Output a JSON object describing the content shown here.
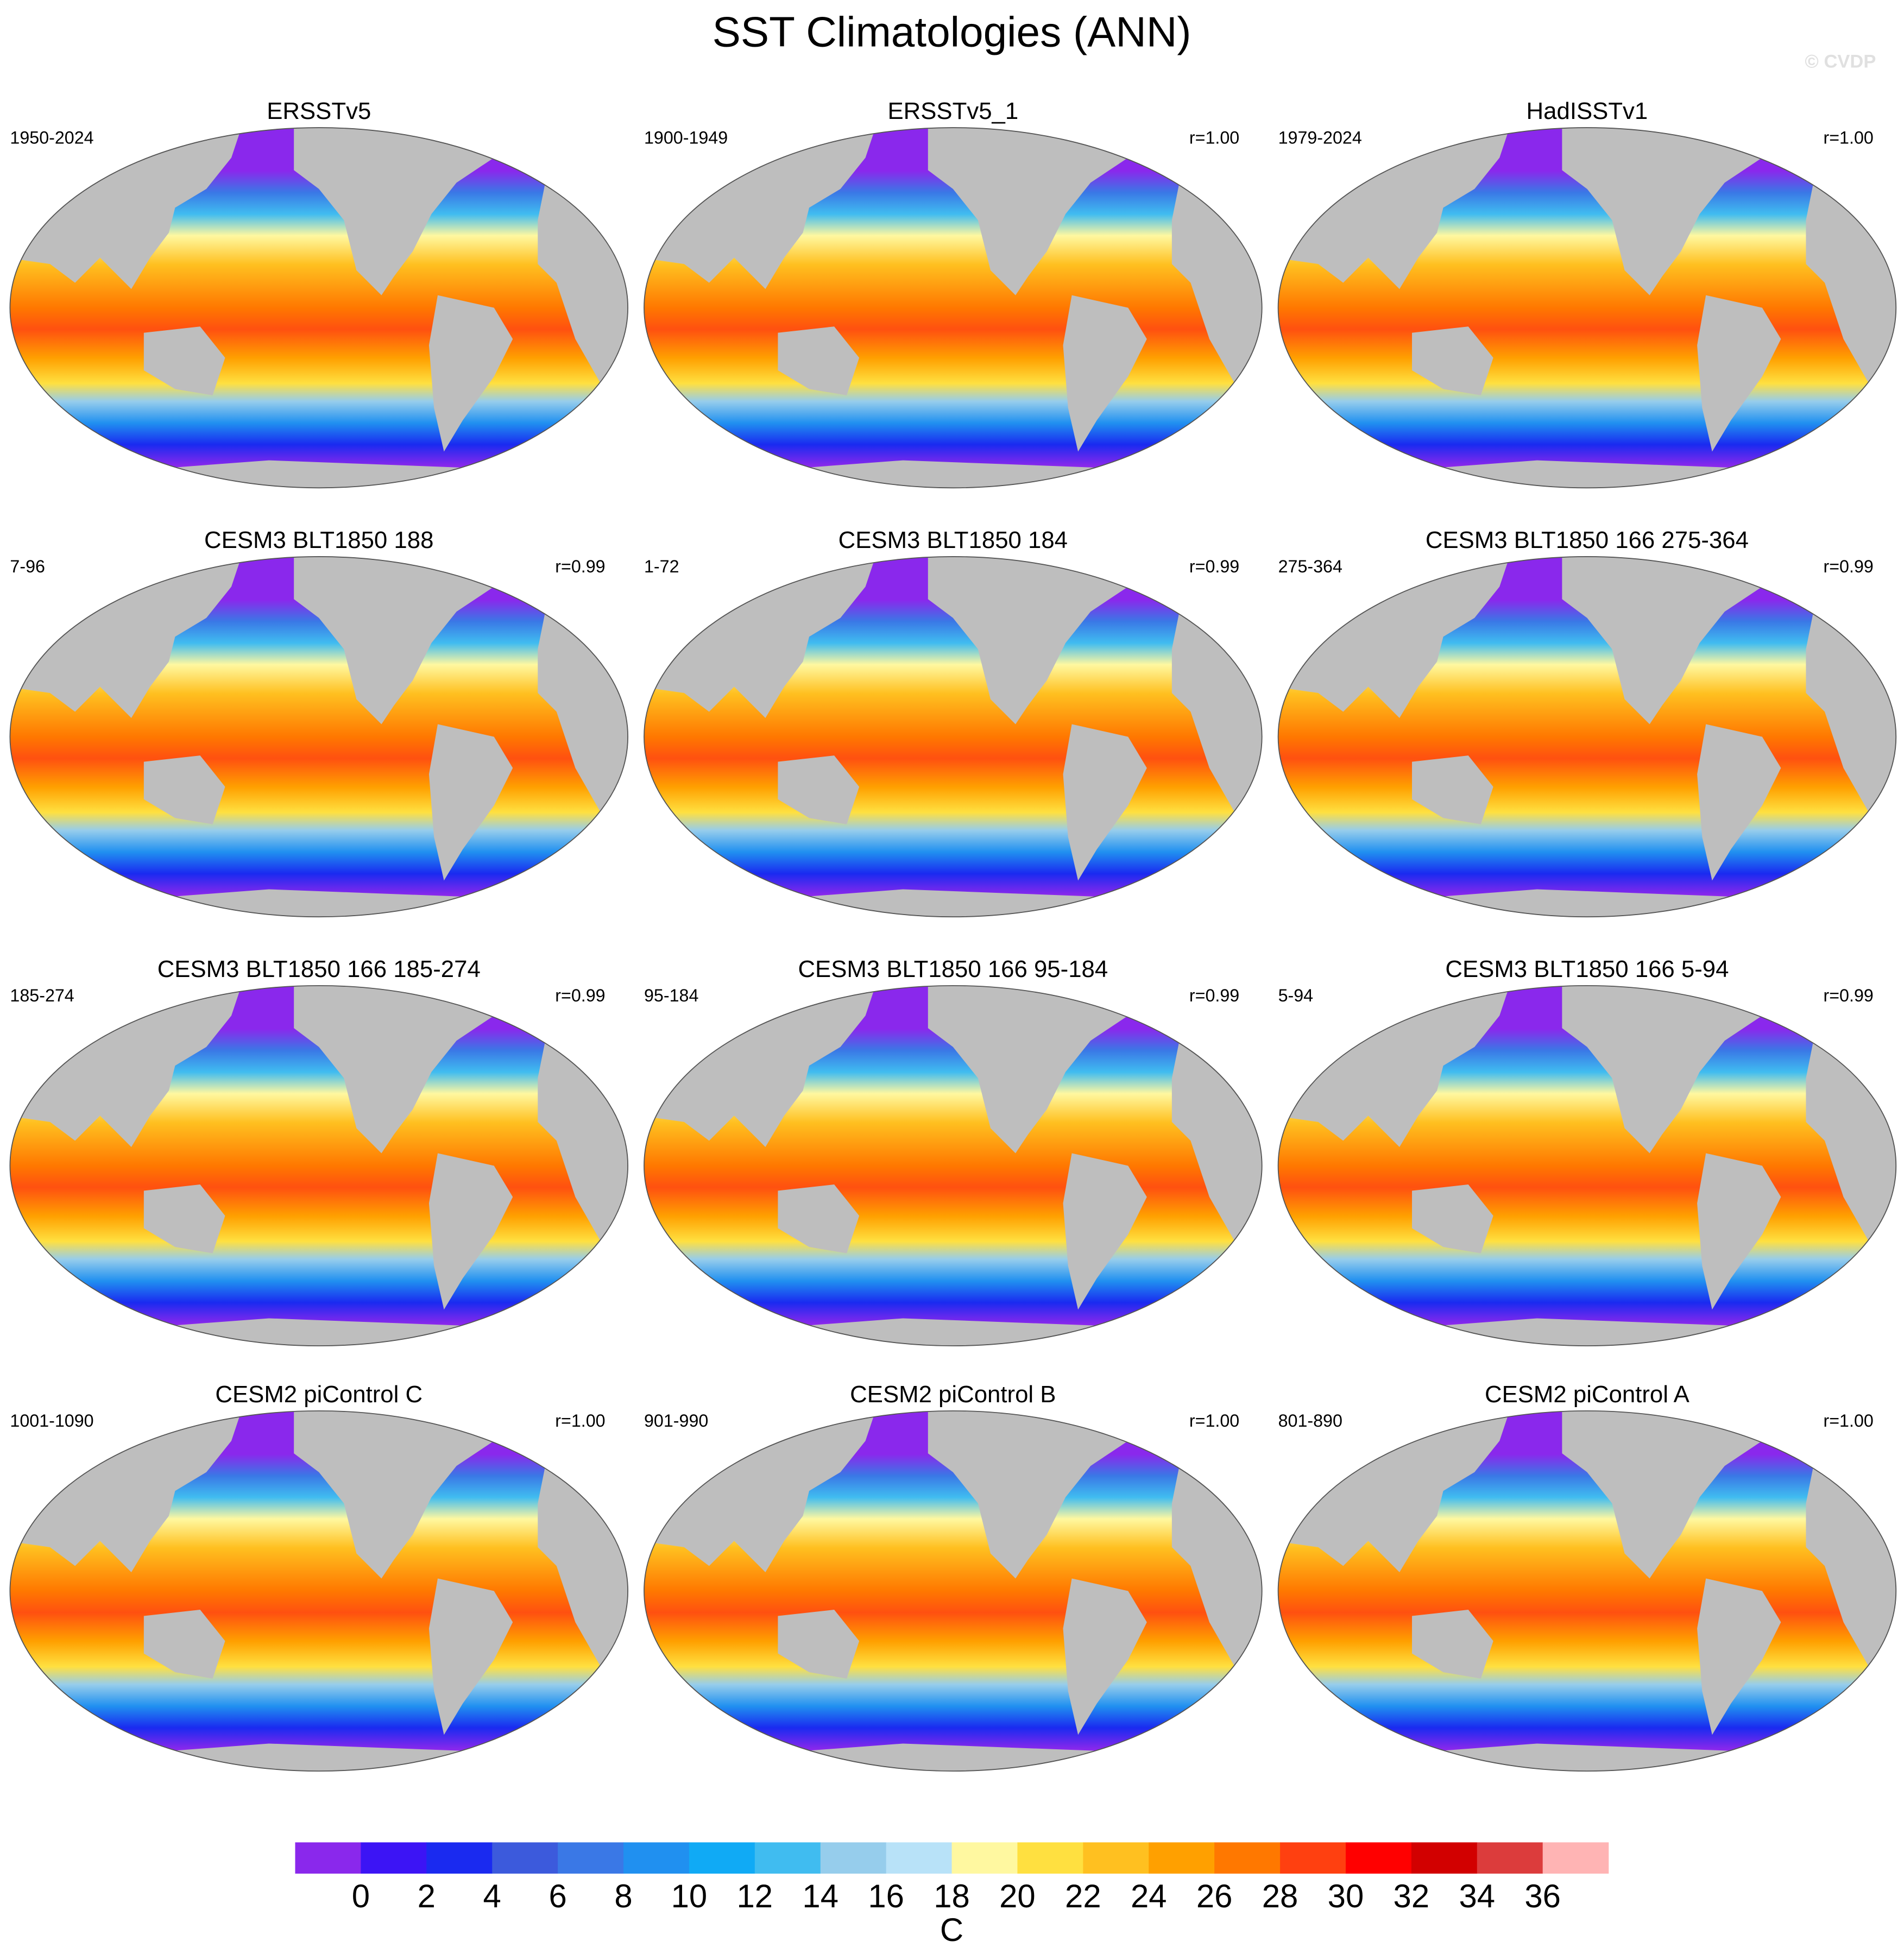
{
  "title": "SST Climatologies (ANN)",
  "watermark": "© CVDP",
  "panels": [
    {
      "title": "ERSSTv5",
      "left": "1950-2024"
    },
    {
      "title": "ERSSTv5_1",
      "left": "1900-1949",
      "right": "r=1.00"
    },
    {
      "title": "HadISSTv1",
      "left": "1979-2024",
      "right": "r=1.00"
    },
    {
      "title": "CESM3 BLT1850 188",
      "left": "7-96",
      "right": "r=0.99"
    },
    {
      "title": "CESM3 BLT1850 184",
      "left": "1-72",
      "right": "r=0.99"
    },
    {
      "title": "CESM3 BLT1850 166 275-364",
      "left": "275-364",
      "right": "r=0.99"
    },
    {
      "title": "CESM3 BLT1850 166 185-274",
      "left": "185-274",
      "right": "r=0.99"
    },
    {
      "title": "CESM3 BLT1850 166 95-184",
      "left": "95-184",
      "right": "r=0.99"
    },
    {
      "title": "CESM3 BLT1850 166 5-94",
      "left": "5-94",
      "right": "r=0.99"
    },
    {
      "title": "CESM2 piControl C",
      "left": "1001-1090",
      "right": "r=1.00"
    },
    {
      "title": "CESM2 piControl B",
      "left": "901-990",
      "right": "r=1.00"
    },
    {
      "title": "CESM2 piControl A",
      "left": "801-890",
      "right": "r=1.00"
    }
  ],
  "colorbar": {
    "colors": [
      "#8a28ec",
      "#3c14f5",
      "#1a2af0",
      "#3c5adc",
      "#3a78e6",
      "#2090f0",
      "#10aaf5",
      "#40bcf0",
      "#96cdec",
      "#b8e2f8",
      "#fff8a0",
      "#ffe040",
      "#ffc020",
      "#ffa000",
      "#ff7800",
      "#ff4010",
      "#ff0000",
      "#d20000",
      "#dc3c3c",
      "#ffb4b4"
    ],
    "labels": [
      0,
      2,
      4,
      6,
      8,
      10,
      12,
      14,
      16,
      18,
      20,
      22,
      24,
      26,
      28,
      30,
      32,
      34,
      36
    ],
    "unit": "C"
  }
}
